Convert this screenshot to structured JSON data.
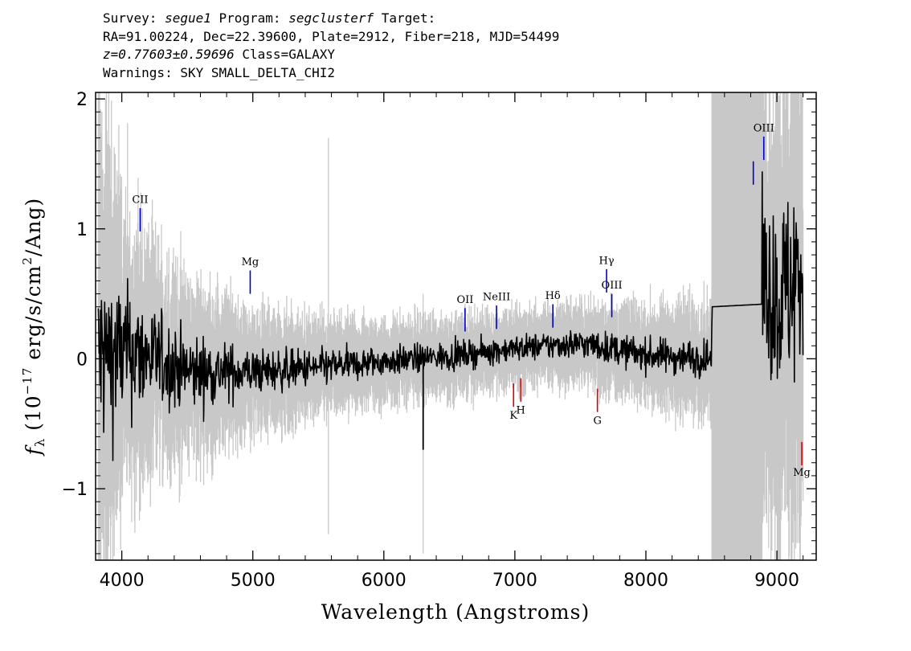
{
  "header": {
    "line1": {
      "survey_prefix": "Survey: ",
      "survey": "segue1",
      "program_prefix": " Program: ",
      "program": "segclusterf",
      "target_suffix": " Target:"
    },
    "line2": "RA=91.00224, Dec=22.39600, Plate=2912, Fiber=218, MJD=54499",
    "line3": {
      "redshift": "z=0.77603±0.59696",
      "class_text": " Class=GALAXY"
    },
    "line4": "Warnings: SKY SMALL_DELTA_CHI2"
  },
  "chart_data": {
    "type": "line",
    "xlabel": "Wavelength (Angstroms)",
    "ylabel": "fλ (10^-17 erg/s/cm^2/Ang)",
    "ylabel_parts": {
      "f": "f",
      "lambda": "λ",
      "prefix": " (10",
      "exp1": "−17",
      "mid": " erg/s/cm",
      "exp2": "2",
      "suffix": "/Ang)"
    },
    "xlim": [
      3800,
      9300
    ],
    "ylim": [
      -1.55,
      2.05
    ],
    "x_ticks": [
      {
        "value": 4000,
        "label": "4000"
      },
      {
        "value": 5000,
        "label": "5000"
      },
      {
        "value": 6000,
        "label": "6000"
      },
      {
        "value": 7000,
        "label": "7000"
      },
      {
        "value": 8000,
        "label": "8000"
      },
      {
        "value": 9000,
        "label": "9000"
      }
    ],
    "y_ticks": [
      {
        "value": -1,
        "label": "−1"
      },
      {
        "value": 0,
        "label": "0"
      },
      {
        "value": 1,
        "label": "1"
      },
      {
        "value": 2,
        "label": "2"
      }
    ],
    "masked_region": [
      8500,
      8890
    ],
    "flux_color": "#000000",
    "error_color": "#c8c8c8",
    "mask_color": "#c8c8c8",
    "emission_color": "#0000cc",
    "absorption_color": "#dd0000",
    "flux_profile": [
      [
        3820,
        0.0
      ],
      [
        4000,
        0.05
      ],
      [
        4200,
        0.02
      ],
      [
        4500,
        -0.1
      ],
      [
        5000,
        -0.1
      ],
      [
        5500,
        -0.07
      ],
      [
        6000,
        -0.02
      ],
      [
        6500,
        0.02
      ],
      [
        7000,
        0.08
      ],
      [
        7500,
        0.12
      ],
      [
        8000,
        0.03
      ],
      [
        8500,
        0.0
      ],
      [
        8505,
        0.4
      ],
      [
        8885,
        0.42
      ],
      [
        8890,
        0.6
      ],
      [
        9000,
        0.45
      ],
      [
        9100,
        0.55
      ],
      [
        9200,
        0.7
      ]
    ],
    "flux_noise_profile": [
      [
        3820,
        0.55
      ],
      [
        4000,
        0.38
      ],
      [
        4300,
        0.25
      ],
      [
        5000,
        0.12
      ],
      [
        6000,
        0.08
      ],
      [
        7000,
        0.07
      ],
      [
        8000,
        0.09
      ],
      [
        8500,
        0.1
      ],
      [
        8890,
        0.45
      ],
      [
        9200,
        0.6
      ]
    ],
    "error_profile": [
      [
        3820,
        2.0
      ],
      [
        4000,
        1.1
      ],
      [
        4300,
        0.75
      ],
      [
        5000,
        0.45
      ],
      [
        5500,
        0.35
      ],
      [
        6000,
        0.3
      ],
      [
        7000,
        0.28
      ],
      [
        7500,
        0.3
      ],
      [
        8000,
        0.35
      ],
      [
        8500,
        0.45
      ],
      [
        8890,
        1.6
      ],
      [
        9200,
        2.0
      ]
    ],
    "spikes": [
      {
        "x": 6300,
        "y": -0.7
      }
    ],
    "error_spikes": [
      {
        "x": 5577,
        "ytop": 1.7,
        "ybot": -1.35
      },
      {
        "x": 6300,
        "ytop": 0.5,
        "ybot": -1.5
      }
    ],
    "emission_lines": [
      {
        "label": "CII",
        "x": 4140,
        "y_label": 1.2,
        "y_top": 1.16,
        "y_bot": 0.98
      },
      {
        "label": "Mg",
        "x": 4980,
        "y_label": 0.72,
        "y_top": 0.68,
        "y_bot": 0.5
      },
      {
        "label": "OII",
        "x": 6620,
        "y_label": 0.43,
        "y_top": 0.39,
        "y_bot": 0.21
      },
      {
        "label": "NeIII",
        "x": 6860,
        "y_label": 0.45,
        "y_top": 0.41,
        "y_bot": 0.23
      },
      {
        "label": "Hδ",
        "x": 7290,
        "y_label": 0.46,
        "y_top": 0.42,
        "y_bot": 0.24
      },
      {
        "label": "Hγ",
        "x": 7700,
        "y_label": 0.73,
        "y_top": 0.69,
        "y_bot": 0.51
      },
      {
        "label": "OIII",
        "x": 7740,
        "y_label": 0.54,
        "y_top": 0.5,
        "y_bot": 0.32
      },
      {
        "label": "",
        "x": 8820,
        "y_label": 1.55,
        "y_top": 1.52,
        "y_bot": 1.34
      },
      {
        "label": "OIII",
        "x": 8900,
        "y_label": 1.75,
        "y_top": 1.71,
        "y_bot": 1.53
      }
    ],
    "absorption_lines": [
      {
        "label": "K",
        "x": 6990,
        "y_label": -0.46,
        "y_top": -0.19,
        "y_bot": -0.37
      },
      {
        "label": "H",
        "x": 7045,
        "y_label": -0.42,
        "y_top": -0.15,
        "y_bot": -0.33
      },
      {
        "label": "G",
        "x": 7630,
        "y_label": -0.5,
        "y_top": -0.23,
        "y_bot": -0.41
      },
      {
        "label": "Mg",
        "x": 9190,
        "y_label": -0.9,
        "y_top": -0.64,
        "y_bot": -0.82
      }
    ]
  }
}
